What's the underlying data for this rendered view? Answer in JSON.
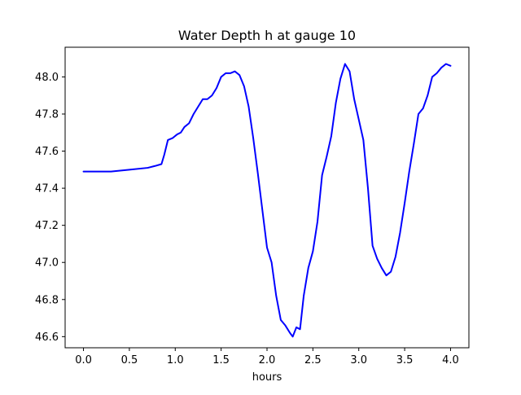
{
  "chart_data": {
    "type": "line",
    "title": "Water Depth h at gauge 10",
    "xlabel": "hours",
    "ylabel": "",
    "xlim": [
      -0.2,
      4.2
    ],
    "ylim": [
      46.54,
      48.16
    ],
    "xticks": [
      0.0,
      0.5,
      1.0,
      1.5,
      2.0,
      2.5,
      3.0,
      3.5,
      4.0
    ],
    "xtick_labels": [
      "0.0",
      "0.5",
      "1.0",
      "1.5",
      "2.0",
      "2.5",
      "3.0",
      "3.5",
      "4.0"
    ],
    "yticks": [
      46.6,
      46.8,
      47.0,
      47.2,
      47.4,
      47.6,
      47.8,
      48.0
    ],
    "ytick_labels": [
      "46.6",
      "46.8",
      "47.0",
      "47.2",
      "47.4",
      "47.6",
      "47.8",
      "48.0"
    ],
    "grid": false,
    "series": [
      {
        "color": "#0000ff",
        "x": [
          0.0,
          0.3,
          0.5,
          0.7,
          0.78,
          0.85,
          0.88,
          0.92,
          0.97,
          1.02,
          1.06,
          1.1,
          1.15,
          1.2,
          1.25,
          1.3,
          1.35,
          1.4,
          1.45,
          1.5,
          1.55,
          1.6,
          1.65,
          1.7,
          1.75,
          1.8,
          1.85,
          1.9,
          1.95,
          2.0,
          2.05,
          2.1,
          2.15,
          2.2,
          2.25,
          2.28,
          2.32,
          2.36,
          2.4,
          2.45,
          2.5,
          2.55,
          2.6,
          2.65,
          2.7,
          2.75,
          2.8,
          2.85,
          2.9,
          2.95,
          3.0,
          3.05,
          3.1,
          3.15,
          3.2,
          3.25,
          3.3,
          3.35,
          3.4,
          3.45,
          3.5,
          3.55,
          3.6,
          3.65,
          3.7,
          3.75,
          3.8,
          3.85,
          3.9,
          3.95,
          4.0
        ],
        "y": [
          47.49,
          47.49,
          47.5,
          47.51,
          47.52,
          47.53,
          47.58,
          47.66,
          47.67,
          47.69,
          47.7,
          47.73,
          47.75,
          47.8,
          47.84,
          47.88,
          47.88,
          47.9,
          47.94,
          48.0,
          48.02,
          48.02,
          48.03,
          48.01,
          47.95,
          47.84,
          47.67,
          47.48,
          47.28,
          47.08,
          47.0,
          46.82,
          46.69,
          46.66,
          46.62,
          46.6,
          46.65,
          46.64,
          46.82,
          46.97,
          47.06,
          47.22,
          47.47,
          47.57,
          47.68,
          47.86,
          47.99,
          48.07,
          48.03,
          47.88,
          47.77,
          47.66,
          47.4,
          47.09,
          47.02,
          46.97,
          46.93,
          46.95,
          47.03,
          47.16,
          47.32,
          47.49,
          47.64,
          47.8,
          47.83,
          47.9,
          48.0,
          48.02,
          48.05,
          48.07,
          48.06
        ]
      }
    ]
  }
}
